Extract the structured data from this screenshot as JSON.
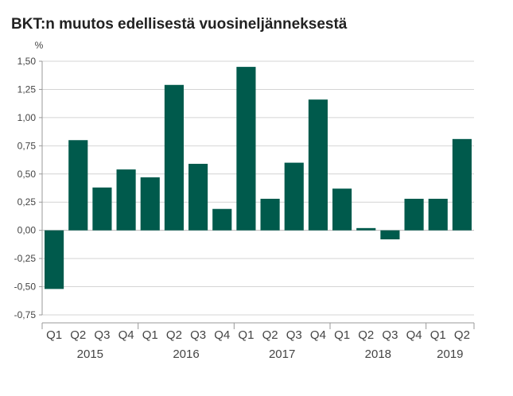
{
  "chart_data": {
    "type": "bar",
    "title": "BKT:n muutos edellisestä vuosineljänneksestä",
    "ylabel": "%",
    "xlabel": "",
    "ylim": [
      -0.75,
      1.5
    ],
    "yticks": [
      1.5,
      1.25,
      1.0,
      0.75,
      0.5,
      0.25,
      0.0,
      -0.25,
      -0.5,
      -0.75
    ],
    "ytick_labels": [
      "1,50",
      "1,25",
      "1,00",
      "0,75",
      "0,50",
      "0,25",
      "0,00",
      "-0,25",
      "-0,50",
      "-0,75"
    ],
    "grid": true,
    "bar_color": "#005a4c",
    "categories": [
      "Q1",
      "Q2",
      "Q3",
      "Q4",
      "Q1",
      "Q2",
      "Q3",
      "Q4",
      "Q1",
      "Q2",
      "Q3",
      "Q4",
      "Q1",
      "Q2",
      "Q3",
      "Q4",
      "Q1",
      "Q2"
    ],
    "years": [
      {
        "label": "2015",
        "start": 0,
        "end": 3
      },
      {
        "label": "2016",
        "start": 4,
        "end": 7
      },
      {
        "label": "2017",
        "start": 8,
        "end": 11
      },
      {
        "label": "2018",
        "start": 12,
        "end": 15
      },
      {
        "label": "2019",
        "start": 16,
        "end": 17
      }
    ],
    "values": [
      -0.52,
      0.8,
      0.38,
      0.54,
      0.47,
      1.29,
      0.59,
      0.19,
      1.45,
      0.28,
      0.6,
      1.16,
      0.37,
      0.02,
      -0.08,
      0.28,
      0.28,
      0.81
    ]
  }
}
